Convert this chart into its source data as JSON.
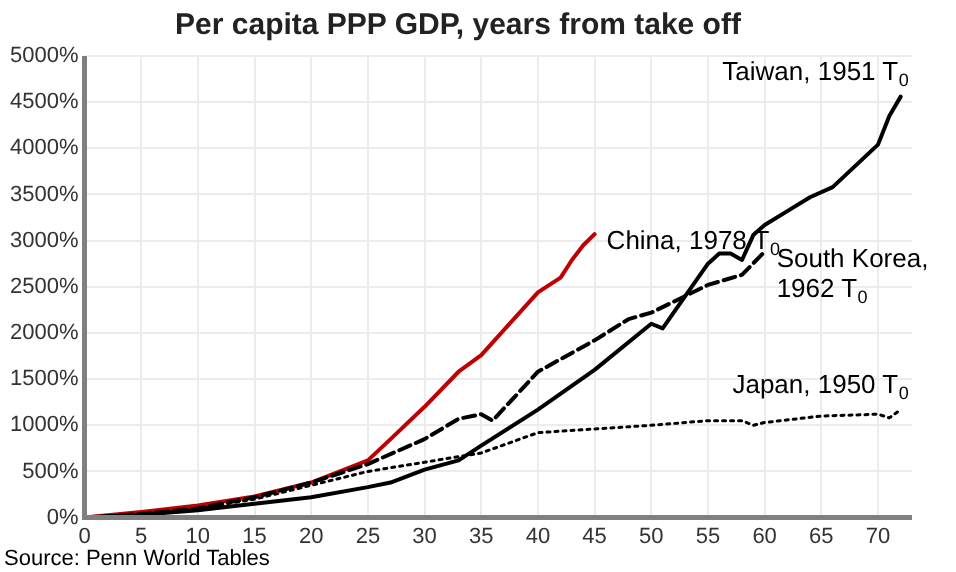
{
  "chart_data": {
    "type": "line",
    "title": "Per capita PPP GDP, years from take off",
    "xlim": [
      0,
      73
    ],
    "xticks": [
      0,
      5,
      10,
      15,
      20,
      25,
      30,
      35,
      40,
      45,
      50,
      55,
      60,
      65,
      70
    ],
    "ylim": [
      0,
      5000
    ],
    "yticks": [
      {
        "value": 0,
        "label": "0%"
      },
      {
        "value": 500,
        "label": "500%"
      },
      {
        "value": 1000,
        "label": "1000%"
      },
      {
        "value": 1500,
        "label": "1500%"
      },
      {
        "value": 2000,
        "label": "2000%"
      },
      {
        "value": 2500,
        "label": "2500%"
      },
      {
        "value": 3000,
        "label": "3000%"
      },
      {
        "value": 3500,
        "label": "3500%"
      },
      {
        "value": 4000,
        "label": "4000%"
      },
      {
        "value": 4500,
        "label": "4500%"
      },
      {
        "value": 5000,
        "label": "5000%"
      }
    ],
    "grid": true,
    "legend": false,
    "marker": "none",
    "series": [
      {
        "name": "Taiwan, 1951 T$_{0}$",
        "color": "#000000",
        "line_style": "solid",
        "x": [
          0,
          5,
          10,
          15,
          20,
          25,
          27,
          30,
          33,
          35,
          40,
          45,
          50,
          51,
          55,
          56,
          57,
          58,
          59,
          60,
          62,
          64,
          66,
          68,
          70,
          71,
          72
        ],
        "values": [
          0,
          30,
          80,
          150,
          220,
          330,
          380,
          520,
          620,
          780,
          1170,
          1600,
          2100,
          2050,
          2750,
          2860,
          2860,
          2790,
          3060,
          3170,
          3320,
          3470,
          3580,
          3810,
          4040,
          4350,
          4560
        ]
      },
      {
        "name": "South Korea,\n1962 T$_{0}$",
        "color": "#000000",
        "line_style": "dashed",
        "x": [
          0,
          5,
          10,
          15,
          20,
          25,
          30,
          33,
          35,
          36,
          40,
          45,
          48,
          50,
          55,
          58,
          60
        ],
        "values": [
          0,
          40,
          100,
          220,
          380,
          580,
          850,
          1070,
          1120,
          1050,
          1580,
          1920,
          2150,
          2220,
          2520,
          2630,
          2880
        ]
      },
      {
        "name": "China, 1978 T$_{0}$",
        "color": "#c00000",
        "line_style": "solid",
        "x": [
          0,
          5,
          10,
          15,
          20,
          25,
          27,
          30,
          33,
          35,
          40,
          42,
          43,
          44,
          45
        ],
        "values": [
          0,
          60,
          130,
          230,
          380,
          620,
          850,
          1200,
          1580,
          1760,
          2440,
          2600,
          2790,
          2950,
          3070
        ]
      },
      {
        "name": "Japan, 1950 T$_{0}$",
        "color": "#000000",
        "line_style": "dotted",
        "x": [
          0,
          5,
          10,
          15,
          20,
          25,
          30,
          35,
          40,
          45,
          50,
          55,
          58,
          59,
          60,
          65,
          70,
          71,
          72
        ],
        "values": [
          0,
          40,
          100,
          200,
          350,
          500,
          600,
          700,
          920,
          960,
          1000,
          1050,
          1050,
          1000,
          1030,
          1100,
          1120,
          1080,
          1170
        ]
      }
    ],
    "annotations": [
      "Source: Penn World Tables"
    ]
  }
}
